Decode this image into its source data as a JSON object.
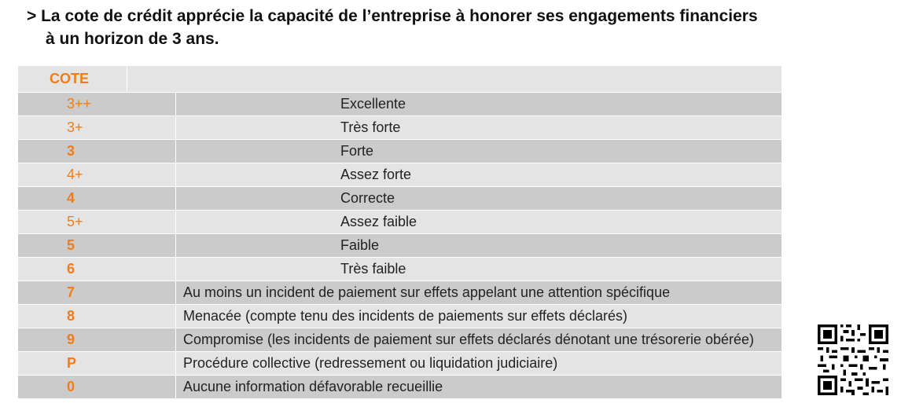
{
  "intro": {
    "line1": "> La cote de crédit apprécie la capacité de l’entreprise à honorer ses engagements financiers",
    "line2": "à un horizon de 3 ans."
  },
  "table": {
    "header": {
      "cote": "COTE",
      "description": ""
    },
    "rows": [
      {
        "code": "3++",
        "label": "Excellente"
      },
      {
        "code": "3+",
        "label": "Très forte"
      },
      {
        "code": "3",
        "label": "Forte"
      },
      {
        "code": "4+",
        "label": "Assez forte"
      },
      {
        "code": "4",
        "label": "Correcte"
      },
      {
        "code": "5+",
        "label": "Assez faible"
      },
      {
        "code": "5",
        "label": "Faible"
      },
      {
        "code": "6",
        "label": "Très faible"
      },
      {
        "code": "7",
        "label": "Au moins un incident de paiement sur effets appelant une attention spécifique"
      },
      {
        "code": "8",
        "label": "Menacée (compte tenu des incidents de paiements sur effets déclarés)"
      },
      {
        "code": "9",
        "label": "Compromise (les incidents de paiement sur effets déclarés dénotant une trésorerie obérée)"
      },
      {
        "code": "P",
        "label": "Procédure collective (redressement ou liquidation judiciaire)"
      },
      {
        "code": "0",
        "label": "Aucune information défavorable recueillie"
      }
    ]
  },
  "colors": {
    "accent": "#f07d1a",
    "row_dark": "#cbcbcb",
    "row_light": "#e4e4e4"
  },
  "qr_code": {
    "icon": "qr-code-icon"
  }
}
